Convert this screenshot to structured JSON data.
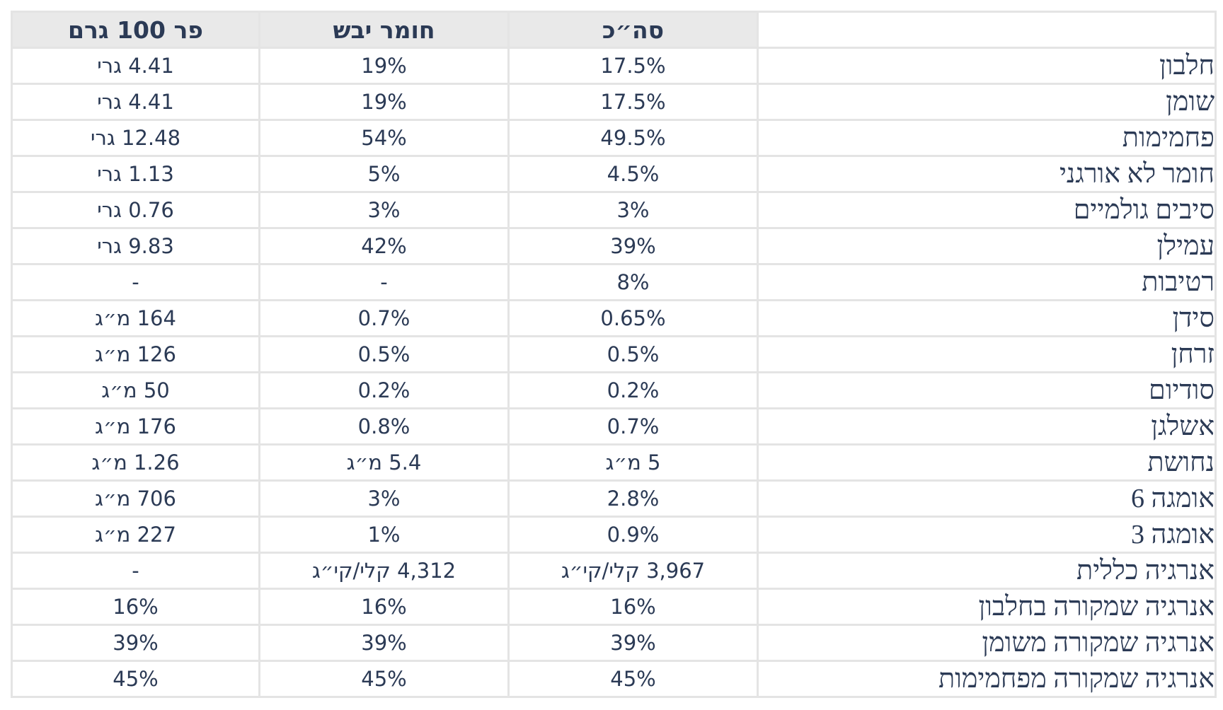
{
  "table": {
    "headers": [
      "סה״כ",
      "חומר יבש",
      "פר 100 גרם"
    ],
    "rows": [
      {
        "label": "חלבון",
        "total": "17.5%",
        "dry": "19%",
        "per100": "4.41 גרי"
      },
      {
        "label": "שומן",
        "total": "17.5%",
        "dry": "19%",
        "per100": "4.41 גרי"
      },
      {
        "label": "פחמימות",
        "total": "49.5%",
        "dry": "54%",
        "per100": "12.48 גרי"
      },
      {
        "label": "חומר לא אורגני",
        "total": "4.5%",
        "dry": "5%",
        "per100": "1.13 גרי"
      },
      {
        "label": "סיבים גולמיים",
        "total": "3%",
        "dry": "3%",
        "per100": "0.76 גרי"
      },
      {
        "label": "עמילן",
        "total": "39%",
        "dry": "42%",
        "per100": "9.83 גרי"
      },
      {
        "label": "רטיבות",
        "total": "8%",
        "dry": "-",
        "per100": "-"
      },
      {
        "label": "סידן",
        "total": "0.65%",
        "dry": "0.7%",
        "per100": "164 מ״ג"
      },
      {
        "label": "זרחן",
        "total": "0.5%",
        "dry": "0.5%",
        "per100": "126 מ״ג"
      },
      {
        "label": "סודיום",
        "total": "0.2%",
        "dry": "0.2%",
        "per100": "50 מ״ג"
      },
      {
        "label": "אשלגן",
        "total": "0.7%",
        "dry": "0.8%",
        "per100": "176 מ״ג"
      },
      {
        "label": "נחושת",
        "total": "5 מ״ג",
        "dry": "5.4 מ״ג",
        "per100": "1.26 מ״ג"
      },
      {
        "label": "אומגה 6",
        "total": "2.8%",
        "dry": "3%",
        "per100": "706 מ״ג"
      },
      {
        "label": "אומגה 3",
        "total": "0.9%",
        "dry": "1%",
        "per100": "227 מ״ג"
      },
      {
        "label": "אנרגיה כללית",
        "total": "3,967 קלי/קי״ג",
        "dry": "4,312 קלי/קי״ג",
        "per100": "-"
      },
      {
        "label": "אנרגיה שמקורה בחלבון",
        "total": "16%",
        "dry": "16%",
        "per100": "16%"
      },
      {
        "label": "אנרגיה שמקורה משומן",
        "total": "39%",
        "dry": "39%",
        "per100": "39%"
      },
      {
        "label": "אנרגיה שמקורה מפחמימות",
        "total": "45%",
        "dry": "45%",
        "per100": "45%"
      }
    ]
  },
  "colors": {
    "text": "#2b3a55",
    "header_bg": "#e9e9e9",
    "grid": "#e4e4e4"
  }
}
